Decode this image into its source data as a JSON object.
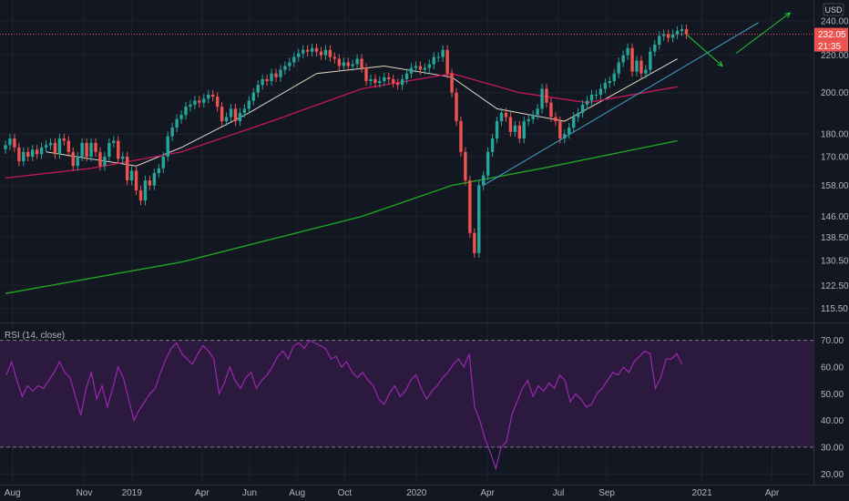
{
  "chart_data": [
    {
      "type": "candlestick",
      "currency": "USD",
      "price_axis": {
        "scale": "log",
        "range": [
          112,
          252
        ],
        "ticks": [
          "240.00",
          "220.00",
          "200.00",
          "180.00",
          "170.00",
          "158.00",
          "146.00",
          "138.50",
          "130.50",
          "122.50",
          "115.50"
        ]
      },
      "time_axis": {
        "range": [
          "2018-07-16",
          "2021-05-24"
        ],
        "ticks": [
          {
            "date": "2018-08-01",
            "label": "Aug"
          },
          {
            "date": "2018-11-01",
            "label": "Nov"
          },
          {
            "date": "2019-01-01",
            "label": "2019"
          },
          {
            "date": "2019-04-01",
            "label": "Apr"
          },
          {
            "date": "2019-06-01",
            "label": "Jun"
          },
          {
            "date": "2019-08-01",
            "label": "Aug"
          },
          {
            "date": "2019-10-01",
            "label": "Oct"
          },
          {
            "date": "2020-01-01",
            "label": "2020"
          },
          {
            "date": "2020-04-01",
            "label": "Apr"
          },
          {
            "date": "2020-07-01",
            "label": "Jul"
          },
          {
            "date": "2020-09-01",
            "label": "Sep"
          },
          {
            "date": "2021-01-01",
            "label": "2021"
          },
          {
            "date": "2021-04-01",
            "label": "Apr"
          }
        ]
      },
      "last_price": "232.05",
      "countdown": "21:35",
      "colors": {
        "up": "#26a69a",
        "down": "#ef5350",
        "ma_short": "#e6d7c3",
        "ma_mid": "#c2185b",
        "ma_long": "#1faa1f",
        "trendline": "#3fa4c7",
        "arrow": "#22cc33"
      },
      "close": [
        [
          1,
          175
        ],
        [
          2,
          178
        ],
        [
          3,
          174
        ],
        [
          4,
          168
        ],
        [
          5,
          172
        ],
        [
          6,
          170
        ],
        [
          7,
          173
        ],
        [
          8,
          171
        ],
        [
          9,
          174
        ],
        [
          10,
          175
        ],
        [
          11,
          176
        ],
        [
          12,
          171
        ],
        [
          13,
          178
        ],
        [
          14,
          177
        ],
        [
          15,
          172
        ],
        [
          16,
          166
        ],
        [
          17,
          170
        ],
        [
          18,
          176
        ],
        [
          19,
          170
        ],
        [
          20,
          176
        ],
        [
          21,
          172
        ],
        [
          22,
          166
        ],
        [
          23,
          170
        ],
        [
          24,
          176
        ],
        [
          25,
          177
        ],
        [
          26,
          169
        ],
        [
          27,
          170
        ],
        [
          28,
          160
        ],
        [
          29,
          164
        ],
        [
          30,
          156
        ],
        [
          31,
          152
        ],
        [
          32,
          160
        ],
        [
          33,
          158
        ],
        [
          34,
          163
        ],
        [
          35,
          165
        ],
        [
          36,
          170
        ],
        [
          37,
          179
        ],
        [
          38,
          183
        ],
        [
          39,
          187
        ],
        [
          40,
          189
        ],
        [
          41,
          193
        ],
        [
          42,
          194
        ],
        [
          43,
          196
        ],
        [
          44,
          195
        ],
        [
          45,
          197
        ],
        [
          46,
          199
        ],
        [
          47,
          198
        ],
        [
          48,
          193
        ],
        [
          49,
          186
        ],
        [
          50,
          188
        ],
        [
          51,
          192
        ],
        [
          52,
          186
        ],
        [
          53,
          190
        ],
        [
          54,
          192
        ],
        [
          55,
          196
        ],
        [
          56,
          200
        ],
        [
          57,
          204
        ],
        [
          58,
          207
        ],
        [
          59,
          206
        ],
        [
          60,
          210
        ],
        [
          61,
          208
        ],
        [
          62,
          212
        ],
        [
          63,
          214
        ],
        [
          64,
          216
        ],
        [
          65,
          219
        ],
        [
          66,
          221
        ],
        [
          67,
          223
        ],
        [
          68,
          222
        ],
        [
          69,
          224
        ],
        [
          70,
          222
        ],
        [
          71,
          220
        ],
        [
          72,
          223
        ],
        [
          73,
          219
        ],
        [
          74,
          218
        ],
        [
          75,
          214
        ],
        [
          76,
          216
        ],
        [
          77,
          214
        ],
        [
          78,
          215
        ],
        [
          79,
          218
        ],
        [
          80,
          213
        ],
        [
          81,
          206
        ],
        [
          82,
          207
        ],
        [
          83,
          205
        ],
        [
          84,
          206
        ],
        [
          85,
          208
        ],
        [
          86,
          207
        ],
        [
          87,
          205
        ],
        [
          88,
          204
        ],
        [
          89,
          207
        ],
        [
          90,
          210
        ],
        [
          91,
          213
        ],
        [
          92,
          214
        ],
        [
          93,
          212
        ],
        [
          94,
          213
        ],
        [
          95,
          215
        ],
        [
          96,
          219
        ],
        [
          97,
          219
        ],
        [
          98,
          223
        ],
        [
          99,
          210
        ],
        [
          100,
          200
        ],
        [
          101,
          186
        ],
        [
          102,
          172
        ],
        [
          103,
          160
        ],
        [
          104,
          140
        ],
        [
          105,
          133
        ],
        [
          106,
          158
        ],
        [
          107,
          162
        ],
        [
          108,
          172
        ],
        [
          109,
          178
        ],
        [
          110,
          186
        ],
        [
          111,
          190
        ],
        [
          112,
          188
        ],
        [
          113,
          181
        ],
        [
          114,
          184
        ],
        [
          115,
          178
        ],
        [
          116,
          186
        ],
        [
          117,
          187
        ],
        [
          118,
          189
        ],
        [
          119,
          192
        ],
        [
          120,
          202
        ],
        [
          121,
          195
        ],
        [
          122,
          188
        ],
        [
          123,
          186
        ],
        [
          124,
          178
        ],
        [
          125,
          180
        ],
        [
          126,
          183
        ],
        [
          127,
          188
        ],
        [
          128,
          190
        ],
        [
          129,
          194
        ],
        [
          130,
          196
        ],
        [
          131,
          199
        ],
        [
          132,
          199
        ],
        [
          133,
          202
        ],
        [
          134,
          205
        ],
        [
          135,
          206
        ],
        [
          136,
          210
        ],
        [
          137,
          216
        ],
        [
          138,
          220
        ],
        [
          139,
          224
        ],
        [
          140,
          211
        ],
        [
          141,
          217
        ],
        [
          142,
          210
        ],
        [
          143,
          212
        ],
        [
          144,
          222
        ],
        [
          145,
          226
        ],
        [
          146,
          231
        ],
        [
          147,
          232
        ],
        [
          148,
          230
        ],
        [
          149,
          232
        ],
        [
          150,
          234
        ],
        [
          151,
          235
        ],
        [
          152,
          232
        ]
      ],
      "moving_averages": [
        {
          "name": "ma_short",
          "values": [
            [
              10,
              172
            ],
            [
              30,
              166
            ],
            [
              40,
              174
            ],
            [
              55,
              190
            ],
            [
              70,
              210
            ],
            [
              85,
              214
            ],
            [
              100,
              208
            ],
            [
              110,
              192
            ],
            [
              125,
              186
            ],
            [
              135,
              198
            ],
            [
              150,
              218
            ]
          ]
        },
        {
          "name": "ma_mid",
          "values": [
            [
              1,
              161
            ],
            [
              20,
              165
            ],
            [
              40,
              172
            ],
            [
              60,
              186
            ],
            [
              80,
              202
            ],
            [
              100,
              210
            ],
            [
              115,
              200
            ],
            [
              130,
              195
            ],
            [
              150,
              203
            ]
          ]
        },
        {
          "name": "ma_long",
          "values": [
            [
              1,
              120
            ],
            [
              40,
              130
            ],
            [
              80,
              146
            ],
            [
              100,
              158
            ],
            [
              120,
              165
            ],
            [
              150,
              177
            ]
          ]
        }
      ],
      "trendline": {
        "from": [
          107,
          158
        ],
        "to": [
          168,
          239
        ]
      },
      "projection_arrows": [
        {
          "from": [
            152,
            232
          ],
          "to": [
            160,
            214
          ]
        },
        {
          "from": [
            163,
            221
          ],
          "to": [
            175,
            245
          ]
        }
      ]
    },
    {
      "type": "line",
      "title": "RSI (14, close)",
      "ylim": [
        16,
        76
      ],
      "ticks": [
        "70.00",
        "60.00",
        "50.00",
        "40.00",
        "30.00",
        "20.00"
      ],
      "band": [
        30,
        70
      ],
      "color": "#9c27b0",
      "values": [
        [
          1,
          57
        ],
        [
          2,
          62
        ],
        [
          3,
          55
        ],
        [
          4,
          49
        ],
        [
          5,
          53
        ],
        [
          6,
          51
        ],
        [
          7,
          53
        ],
        [
          8,
          52
        ],
        [
          9,
          55
        ],
        [
          10,
          58
        ],
        [
          11,
          62
        ],
        [
          12,
          58
        ],
        [
          13,
          56
        ],
        [
          14,
          49
        ],
        [
          15,
          42
        ],
        [
          16,
          52
        ],
        [
          17,
          58
        ],
        [
          18,
          48
        ],
        [
          19,
          53
        ],
        [
          20,
          45
        ],
        [
          21,
          52
        ],
        [
          22,
          60
        ],
        [
          23,
          56
        ],
        [
          24,
          48
        ],
        [
          25,
          40
        ],
        [
          26,
          44
        ],
        [
          27,
          47
        ],
        [
          28,
          50
        ],
        [
          29,
          52
        ],
        [
          30,
          58
        ],
        [
          31,
          63
        ],
        [
          32,
          67
        ],
        [
          33,
          69
        ],
        [
          34,
          65
        ],
        [
          35,
          63
        ],
        [
          36,
          61
        ],
        [
          37,
          65
        ],
        [
          38,
          68
        ],
        [
          39,
          66
        ],
        [
          40,
          63
        ],
        [
          41,
          50
        ],
        [
          42,
          54
        ],
        [
          43,
          60
        ],
        [
          44,
          55
        ],
        [
          45,
          52
        ],
        [
          46,
          56
        ],
        [
          47,
          58
        ],
        [
          48,
          52
        ],
        [
          49,
          55
        ],
        [
          50,
          57
        ],
        [
          51,
          60
        ],
        [
          52,
          64
        ],
        [
          53,
          66
        ],
        [
          54,
          63
        ],
        [
          55,
          68
        ],
        [
          56,
          69
        ],
        [
          57,
          67
        ],
        [
          58,
          70
        ],
        [
          59,
          69
        ],
        [
          60,
          68
        ],
        [
          61,
          67
        ],
        [
          62,
          63
        ],
        [
          63,
          64
        ],
        [
          64,
          60
        ],
        [
          65,
          62
        ],
        [
          66,
          58
        ],
        [
          67,
          56
        ],
        [
          68,
          58
        ],
        [
          69,
          55
        ],
        [
          70,
          53
        ],
        [
          71,
          48
        ],
        [
          72,
          46
        ],
        [
          73,
          50
        ],
        [
          74,
          53
        ],
        [
          75,
          49
        ],
        [
          76,
          51
        ],
        [
          77,
          55
        ],
        [
          78,
          57
        ],
        [
          79,
          52
        ],
        [
          80,
          48
        ],
        [
          81,
          51
        ],
        [
          82,
          53
        ],
        [
          83,
          56
        ],
        [
          84,
          58
        ],
        [
          85,
          61
        ],
        [
          86,
          63
        ],
        [
          87,
          60
        ],
        [
          88,
          65
        ],
        [
          89,
          45
        ],
        [
          90,
          40
        ],
        [
          91,
          33
        ],
        [
          92,
          28
        ],
        [
          93,
          22
        ],
        [
          94,
          30
        ],
        [
          95,
          32
        ],
        [
          96,
          42
        ],
        [
          97,
          47
        ],
        [
          98,
          52
        ],
        [
          99,
          55
        ],
        [
          100,
          49
        ],
        [
          101,
          53
        ],
        [
          102,
          51
        ],
        [
          103,
          54
        ],
        [
          104,
          52
        ],
        [
          105,
          57
        ],
        [
          106,
          55
        ],
        [
          107,
          47
        ],
        [
          108,
          50
        ],
        [
          109,
          48
        ],
        [
          110,
          45
        ],
        [
          111,
          46
        ],
        [
          112,
          50
        ],
        [
          113,
          52
        ],
        [
          114,
          55
        ],
        [
          115,
          58
        ],
        [
          116,
          57
        ],
        [
          117,
          60
        ],
        [
          118,
          58
        ],
        [
          119,
          62
        ],
        [
          120,
          64
        ],
        [
          121,
          66
        ],
        [
          122,
          65
        ],
        [
          123,
          52
        ],
        [
          124,
          56
        ],
        [
          125,
          63
        ],
        [
          126,
          63
        ],
        [
          127,
          65
        ],
        [
          128,
          61
        ]
      ]
    }
  ]
}
